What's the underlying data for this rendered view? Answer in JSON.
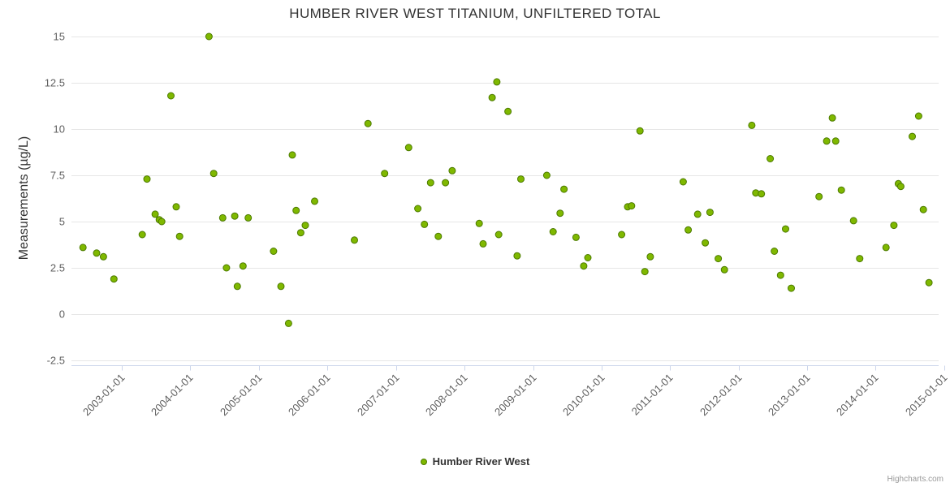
{
  "credits": "Highcharts.com",
  "colors": {
    "point_fill": "#7fb800",
    "point_stroke": "#4c7a00",
    "grid_line": "#e6e6e6",
    "axis_line": "#ccd6eb",
    "tick_label": "#606060",
    "title_text": "#333333"
  },
  "chart_data": {
    "type": "scatter",
    "title": "HUMBER RIVER WEST TITANIUM, UNFILTERED TOTAL",
    "xlabel": "",
    "ylabel": "Measurements (µg/L)",
    "ylim": [
      -2.5,
      15
    ],
    "y_ticks": [
      "-2.5",
      "0",
      "2.5",
      "5",
      "7.5",
      "10",
      "12.5",
      "15"
    ],
    "x_ticks": [
      "2003-01-01",
      "2004-01-01",
      "2005-01-01",
      "2006-01-01",
      "2007-01-01",
      "2008-01-01",
      "2009-01-01",
      "2010-01-01",
      "2011-01-01",
      "2012-01-01",
      "2013-01-01",
      "2014-01-01",
      "2015-01-01"
    ],
    "grid": "horizontal",
    "legend_position": "bottom",
    "series": [
      {
        "name": "Humber River West",
        "color": "#7fb800",
        "points": [
          [
            "2002-06-08",
            3.6
          ],
          [
            "2002-08-20",
            3.3
          ],
          [
            "2002-09-25",
            3.1
          ],
          [
            "2002-11-20",
            1.9
          ],
          [
            "2003-04-20",
            4.3
          ],
          [
            "2003-05-15",
            7.3
          ],
          [
            "2003-06-28",
            5.4
          ],
          [
            "2003-07-20",
            5.1
          ],
          [
            "2003-08-02",
            5.0
          ],
          [
            "2003-09-20",
            11.8
          ],
          [
            "2003-10-18",
            5.8
          ],
          [
            "2003-11-05",
            4.2
          ],
          [
            "2004-04-10",
            15.0
          ],
          [
            "2004-05-05",
            7.6
          ],
          [
            "2004-06-22",
            5.2
          ],
          [
            "2004-07-12",
            2.5
          ],
          [
            "2004-08-25",
            5.3
          ],
          [
            "2004-09-08",
            1.5
          ],
          [
            "2004-10-08",
            2.6
          ],
          [
            "2004-11-05",
            5.2
          ],
          [
            "2005-03-20",
            3.4
          ],
          [
            "2005-04-28",
            1.5
          ],
          [
            "2005-06-08",
            -0.5
          ],
          [
            "2005-06-28",
            8.6
          ],
          [
            "2005-07-18",
            5.6
          ],
          [
            "2005-08-12",
            4.4
          ],
          [
            "2005-09-05",
            4.8
          ],
          [
            "2005-10-25",
            6.1
          ],
          [
            "2006-05-25",
            4.0
          ],
          [
            "2006-08-05",
            10.3
          ],
          [
            "2006-11-02",
            7.6
          ],
          [
            "2007-03-10",
            9.0
          ],
          [
            "2007-04-28",
            5.7
          ],
          [
            "2007-06-02",
            4.85
          ],
          [
            "2007-07-05",
            7.1
          ],
          [
            "2007-08-15",
            4.2
          ],
          [
            "2007-09-22",
            7.1
          ],
          [
            "2007-10-28",
            7.75
          ],
          [
            "2008-03-20",
            4.9
          ],
          [
            "2008-04-10",
            3.8
          ],
          [
            "2008-05-28",
            11.7
          ],
          [
            "2008-06-22",
            12.55
          ],
          [
            "2008-07-02",
            4.3
          ],
          [
            "2008-08-20",
            10.95
          ],
          [
            "2008-10-08",
            3.15
          ],
          [
            "2008-10-28",
            7.3
          ],
          [
            "2009-03-15",
            7.5
          ],
          [
            "2009-04-18",
            4.45
          ],
          [
            "2009-05-25",
            5.45
          ],
          [
            "2009-06-15",
            6.75
          ],
          [
            "2009-08-18",
            4.15
          ],
          [
            "2009-09-28",
            2.6
          ],
          [
            "2009-10-20",
            3.05
          ],
          [
            "2010-04-18",
            4.3
          ],
          [
            "2010-05-20",
            5.8
          ],
          [
            "2010-06-10",
            5.85
          ],
          [
            "2010-07-25",
            9.9
          ],
          [
            "2010-08-20",
            2.3
          ],
          [
            "2010-09-18",
            3.1
          ],
          [
            "2011-03-12",
            7.15
          ],
          [
            "2011-04-08",
            4.55
          ],
          [
            "2011-05-28",
            5.4
          ],
          [
            "2011-07-08",
            3.85
          ],
          [
            "2011-08-02",
            5.5
          ],
          [
            "2011-09-15",
            3.0
          ],
          [
            "2011-10-18",
            2.4
          ],
          [
            "2012-03-12",
            10.2
          ],
          [
            "2012-04-02",
            6.55
          ],
          [
            "2012-05-02",
            6.5
          ],
          [
            "2012-06-18",
            8.4
          ],
          [
            "2012-07-10",
            3.4
          ],
          [
            "2012-08-12",
            2.1
          ],
          [
            "2012-09-08",
            4.6
          ],
          [
            "2012-10-08",
            1.4
          ],
          [
            "2013-03-05",
            6.35
          ],
          [
            "2013-04-15",
            9.35
          ],
          [
            "2013-05-15",
            10.6
          ],
          [
            "2013-06-02",
            9.35
          ],
          [
            "2013-07-02",
            6.7
          ],
          [
            "2013-09-05",
            5.05
          ],
          [
            "2013-10-08",
            3.0
          ],
          [
            "2014-02-25",
            3.6
          ],
          [
            "2014-04-08",
            4.8
          ],
          [
            "2014-05-02",
            7.05
          ],
          [
            "2014-05-15",
            6.9
          ],
          [
            "2014-07-15",
            9.6
          ],
          [
            "2014-08-18",
            10.7
          ],
          [
            "2014-09-12",
            5.65
          ],
          [
            "2014-10-12",
            1.7
          ]
        ]
      }
    ]
  }
}
